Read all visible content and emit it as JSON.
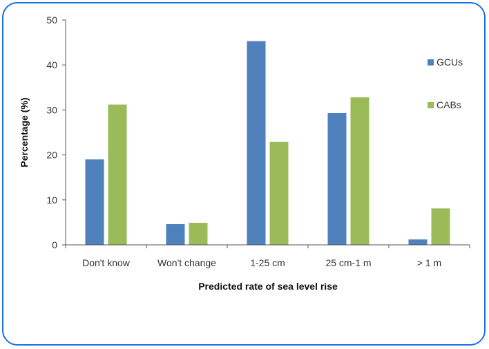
{
  "chart_data": {
    "type": "bar",
    "categories": [
      "Don't know",
      "Won't change",
      "1-25 cm",
      "25 cm-1 m",
      "> 1 m"
    ],
    "series": [
      {
        "name": "GCUs",
        "color": "#4f81bd",
        "values": [
          19,
          4.6,
          45.3,
          29.3,
          1.2
        ]
      },
      {
        "name": "CABs",
        "color": "#9bbb59",
        "values": [
          31.2,
          4.9,
          22.9,
          32.8,
          8.1
        ]
      }
    ],
    "xlabel": "Predicted rate of sea level rise",
    "ylabel": "Percentage (%)",
    "ylim": [
      0,
      50
    ],
    "yticks": [
      0,
      10,
      20,
      30,
      40,
      50
    ],
    "legend_position": "right",
    "grid": false
  }
}
